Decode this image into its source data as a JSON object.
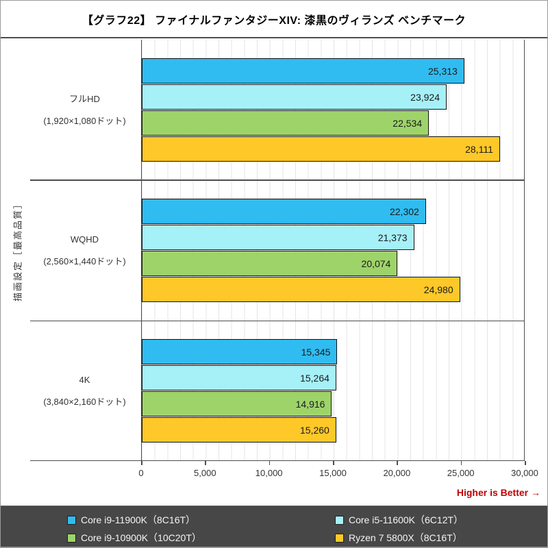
{
  "title": "【グラフ22】 ファイナルファンタジーXIV: 漆黒のヴィランズ ベンチマーク",
  "y_axis_label": "描画設定［最高品質］",
  "note": "Higher is Better →",
  "colors": {
    "series_blue": "#30BCF0",
    "series_cyan": "#A6F0F8",
    "series_green": "#9ED36A",
    "series_yellow": "#FEC829",
    "note_red": "#C00000",
    "legend_background": "#474747",
    "axis_line": "#4D4D4D"
  },
  "chart_data": {
    "type": "bar",
    "orientation": "horizontal",
    "title": "【グラフ22】 ファイナルファンタジーXIV: 漆黒のヴィランズ ベンチマーク",
    "ylabel": "描画設定［最高品質］",
    "xlabel": "",
    "xlim": [
      0,
      30000
    ],
    "x_ticks": [
      "0",
      "5,000",
      "10,000",
      "15,000",
      "20,000",
      "25,000",
      "30,000"
    ],
    "gridline_interval": 1000,
    "grid": true,
    "legend_position": "bottom",
    "categories": [
      {
        "line1": "フルHD",
        "line2": "(1,920×1,080ドット)"
      },
      {
        "line1": "WQHD",
        "line2": "(2,560×1,440ドット)"
      },
      {
        "line1": "4K",
        "line2": "(3,840×2,160ドット)"
      }
    ],
    "series": [
      {
        "name": "Core i9-11900K（8C16T）",
        "color": "#30BCF0",
        "values": [
          25313,
          22302,
          15345
        ]
      },
      {
        "name": "Core i5-11600K（6C12T）",
        "color": "#A6F0F8",
        "values": [
          23924,
          21373,
          15264
        ]
      },
      {
        "name": "Core i9-10900K（10C20T）",
        "color": "#9ED36A",
        "values": [
          22534,
          20074,
          14916
        ]
      },
      {
        "name": "Ryzen 7 5800X（8C16T）",
        "color": "#FEC829",
        "values": [
          28111,
          24980,
          15260
        ]
      }
    ]
  },
  "legend": {
    "items": [
      {
        "label": "Core i9-11900K（8C16T）",
        "color": "#30BCF0"
      },
      {
        "label": "Core i5-11600K（6C12T）",
        "color": "#A6F0F8"
      },
      {
        "label": "Core i9-10900K（10C20T）",
        "color": "#9ED36A"
      },
      {
        "label": "Ryzen 7 5800X（8C16T）",
        "color": "#FEC829"
      }
    ]
  }
}
